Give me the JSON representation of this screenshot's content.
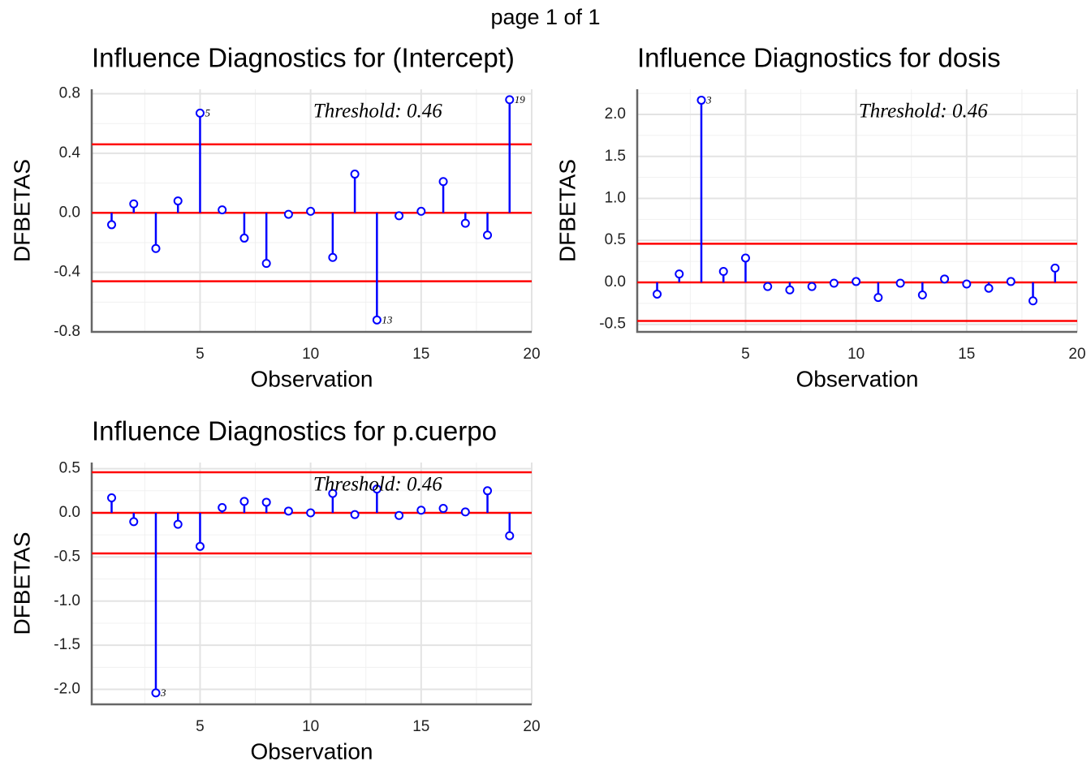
{
  "page_title": "page 1 of 1",
  "chart_data": [
    {
      "type": "lollipop",
      "title": "Influence Diagnostics for (Intercept)",
      "x_label": "Observation",
      "y_label": "DFBETAS",
      "x": [
        1,
        2,
        3,
        4,
        5,
        6,
        7,
        8,
        9,
        10,
        11,
        12,
        13,
        14,
        15,
        16,
        17,
        18,
        19
      ],
      "values": [
        -0.08,
        0.06,
        -0.24,
        0.08,
        0.67,
        0.02,
        -0.17,
        -0.34,
        -0.01,
        0.01,
        -0.3,
        0.26,
        -0.72,
        -0.02,
        0.01,
        0.21,
        -0.07,
        -0.15,
        0.76
      ],
      "point_labels": [
        null,
        null,
        null,
        null,
        "5",
        null,
        null,
        null,
        null,
        null,
        null,
        null,
        "13",
        null,
        null,
        null,
        null,
        null,
        "19"
      ],
      "hlines": [
        0.46,
        0,
        -0.46
      ],
      "annotation": "Threshold: 0.46",
      "color": "#0000ff",
      "threshold_color": "#ff0000",
      "annotation_color": "#8b0000",
      "xlim": [
        0.1,
        20
      ],
      "xticks": [
        5,
        10,
        15,
        20
      ],
      "ylim": [
        -0.8,
        0.83
      ],
      "yticks": [
        -0.8,
        -0.4,
        {
          "value": 0,
          "label": "0.0"
        },
        0.4,
        0.8
      ],
      "grid": true
    },
    {
      "type": "lollipop",
      "title": "Influence Diagnostics for dosis",
      "x_label": "Observation",
      "y_label": "DFBETAS",
      "x": [
        1,
        2,
        3,
        4,
        5,
        6,
        7,
        8,
        9,
        10,
        11,
        12,
        13,
        14,
        15,
        16,
        17,
        18,
        19
      ],
      "values": [
        -0.14,
        0.1,
        2.17,
        0.13,
        0.29,
        -0.05,
        -0.09,
        -0.05,
        -0.01,
        0.01,
        -0.18,
        -0.01,
        -0.15,
        0.04,
        -0.02,
        -0.07,
        0.01,
        -0.22,
        0.17
      ],
      "point_labels": [
        null,
        null,
        "3",
        null,
        null,
        null,
        null,
        null,
        null,
        null,
        null,
        null,
        null,
        null,
        null,
        null,
        null,
        null,
        null
      ],
      "hlines": [
        0.46,
        0,
        -0.46
      ],
      "annotation": "Threshold: 0.46",
      "color": "#0000ff",
      "threshold_color": "#ff0000",
      "annotation_color": "#8b0000",
      "xlim": [
        0.1,
        20
      ],
      "xticks": [
        5,
        10,
        15,
        20
      ],
      "ylim": [
        -0.59,
        2.3
      ],
      "yticks": [
        -0.5,
        {
          "value": 0,
          "label": "0.0"
        },
        0.5,
        {
          "value": 1,
          "label": "1.0"
        },
        1.5,
        {
          "value": 2,
          "label": "2.0"
        }
      ],
      "grid": true
    },
    {
      "type": "lollipop",
      "title": "Influence Diagnostics for p.cuerpo",
      "x_label": "Observation",
      "y_label": "DFBETAS",
      "x": [
        1,
        2,
        3,
        4,
        5,
        6,
        7,
        8,
        9,
        10,
        11,
        12,
        13,
        14,
        15,
        16,
        17,
        18,
        19
      ],
      "values": [
        0.17,
        -0.1,
        -2.04,
        -0.13,
        -0.38,
        0.06,
        0.13,
        0.12,
        0.02,
        0.0,
        0.22,
        -0.02,
        0.27,
        -0.03,
        0.03,
        0.05,
        0.01,
        0.25,
        -0.26
      ],
      "point_labels": [
        null,
        null,
        "3",
        null,
        null,
        null,
        null,
        null,
        null,
        null,
        null,
        null,
        null,
        null,
        null,
        null,
        null,
        null,
        null
      ],
      "hlines": [
        0.46,
        0,
        -0.46
      ],
      "annotation": "Threshold: 0.46",
      "color": "#0000ff",
      "threshold_color": "#ff0000",
      "annotation_color": "#8b0000",
      "xlim": [
        0.1,
        20
      ],
      "xticks": [
        5,
        10,
        15,
        20
      ],
      "ylim": [
        -2.17,
        0.57
      ],
      "yticks": [
        {
          "value": -2,
          "label": "-2.0"
        },
        -1.5,
        {
          "value": -1,
          "label": "-1.0"
        },
        -0.5,
        {
          "value": 0,
          "label": "0.0"
        },
        0.5
      ],
      "grid": true
    }
  ]
}
